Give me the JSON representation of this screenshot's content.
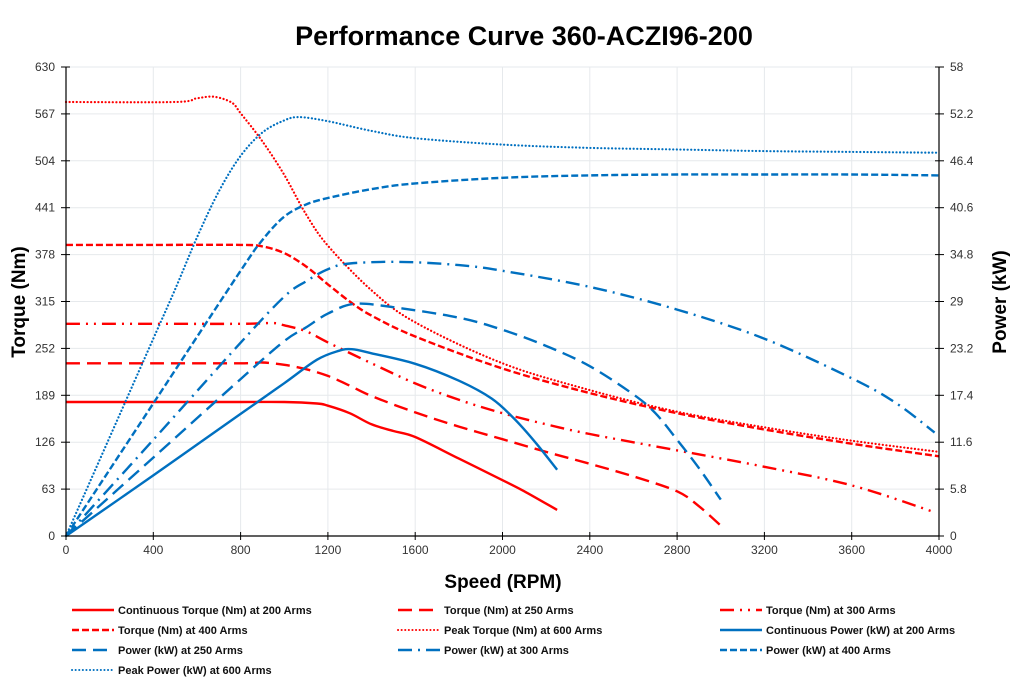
{
  "chart_data": {
    "type": "line",
    "title": "Performance Curve 360-ACZI96-200",
    "xlabel": "Speed (RPM)",
    "ylabel": "Torque (Nm)",
    "y2label": "Power (kW)",
    "xlim": [
      0,
      4000
    ],
    "ylim": [
      0,
      630
    ],
    "y2lim": [
      0,
      58
    ],
    "xticks": [
      "0",
      "400",
      "800",
      "1200",
      "1600",
      "2000",
      "2400",
      "2800",
      "3200",
      "3600",
      "4000"
    ],
    "yticks": [
      "0",
      "63",
      "126",
      "189",
      "252",
      "315",
      "378",
      "441",
      "504",
      "567",
      "630"
    ],
    "y2ticks": [
      "0",
      "5.8",
      "11.6",
      "17.4",
      "23.2",
      "29",
      "34.8",
      "40.6",
      "46.4",
      "52.2",
      "58"
    ],
    "grid": true,
    "legend_position": "bottom",
    "colors": {
      "torque": "#ff0000",
      "power": "#0070c0",
      "grid": "#e6e9ec",
      "axis": "#000000"
    },
    "series": [
      {
        "name": "Continuous Torque (Nm) at 200 Arms",
        "axis": "left",
        "color": "#ff0000",
        "style": "solid",
        "x": [
          0,
          400,
          800,
          1000,
          1150,
          1200,
          1300,
          1400,
          1500,
          1600,
          1800,
          2000,
          2100,
          2250
        ],
        "y": [
          180,
          180,
          180,
          180,
          178,
          175,
          165,
          150,
          141,
          133,
          104,
          75,
          60,
          35
        ]
      },
      {
        "name": "Torque (Nm) at 250 Arms",
        "axis": "left",
        "color": "#ff0000",
        "style": "longdash",
        "x": [
          0,
          400,
          800,
          900,
          1000,
          1100,
          1200,
          1300,
          1400,
          1600,
          1800,
          2000,
          2200,
          2400,
          2600,
          2800,
          2900,
          3000
        ],
        "y": [
          232,
          232,
          232,
          233,
          230,
          224,
          215,
          202,
          188,
          166,
          147,
          130,
          113,
          97,
          80,
          60,
          40,
          14
        ]
      },
      {
        "name": "Torque (Nm) at 300 Arms",
        "axis": "left",
        "color": "#ff0000",
        "style": "dashdotdot",
        "x": [
          0,
          400,
          800,
          950,
          1000,
          1100,
          1200,
          1400,
          1600,
          1800,
          2000,
          2200,
          2400,
          2800,
          3200,
          3600,
          3980
        ],
        "y": [
          285,
          285,
          285,
          286,
          283,
          275,
          260,
          232,
          205,
          183,
          165,
          150,
          137,
          115,
          93,
          68,
          32
        ]
      },
      {
        "name": "Torque (Nm) at 400 Arms",
        "axis": "left",
        "color": "#ff0000",
        "style": "dash",
        "x": [
          0,
          400,
          800,
          900,
          1000,
          1100,
          1200,
          1300,
          1400,
          1600,
          2000,
          2400,
          2800,
          3200,
          3600,
          4000
        ],
        "y": [
          391,
          391,
          391,
          389,
          380,
          362,
          338,
          315,
          296,
          268,
          225,
          192,
          165,
          143,
          124,
          107
        ]
      },
      {
        "name": "Peak Torque (Nm) at 600 Arms",
        "axis": "left",
        "color": "#ff0000",
        "style": "dot",
        "x": [
          0,
          500,
          600,
          680,
          760,
          800,
          900,
          1000,
          1100,
          1200,
          1400,
          1600,
          2000,
          2400,
          2800,
          3200,
          3600,
          4000
        ],
        "y": [
          583,
          583,
          588,
          590,
          582,
          568,
          530,
          485,
          432,
          390,
          330,
          287,
          232,
          196,
          167,
          146,
          128,
          113
        ]
      },
      {
        "name": "Continuous Power (kW) at 200 Arms",
        "axis": "right",
        "color": "#0070c0",
        "style": "solid",
        "x": [
          0,
          400,
          800,
          1000,
          1150,
          1250,
          1310,
          1400,
          1600,
          1800,
          1950,
          2050,
          2150,
          2250
        ],
        "y": [
          0,
          7.5,
          15.1,
          18.9,
          21.8,
          22.9,
          23.1,
          22.6,
          21.3,
          19.2,
          17.0,
          14.6,
          11.6,
          8.2
        ]
      },
      {
        "name": "Power (kW) at 250 Arms",
        "axis": "right",
        "color": "#0070c0",
        "style": "longdash",
        "x": [
          0,
          400,
          800,
          1000,
          1100,
          1200,
          1320,
          1500,
          1800,
          2000,
          2200,
          2400,
          2600,
          2700,
          2800,
          2900,
          3000
        ],
        "y": [
          0,
          9.7,
          19.4,
          24.1,
          25.8,
          27.5,
          28.7,
          28.3,
          27.0,
          25.5,
          23.5,
          21.0,
          17.5,
          15.2,
          11.9,
          8.4,
          4.5
        ]
      },
      {
        "name": "Power (kW) at 300 Arms",
        "axis": "right",
        "color": "#0070c0",
        "style": "dashdot",
        "x": [
          0,
          400,
          800,
          1000,
          1100,
          1200,
          1300,
          1530,
          1800,
          2000,
          2400,
          2800,
          3200,
          3600,
          3800,
          3980
        ],
        "y": [
          0,
          11.9,
          23.9,
          29.6,
          31.5,
          33.0,
          33.7,
          33.9,
          33.5,
          32.8,
          30.8,
          28.0,
          24.4,
          19.5,
          16.5,
          12.8
        ]
      },
      {
        "name": "Power (kW) at 400 Arms",
        "axis": "right",
        "color": "#0070c0",
        "style": "dash",
        "x": [
          0,
          400,
          800,
          900,
          1000,
          1100,
          1200,
          1400,
          1600,
          2000,
          2400,
          2800,
          3200,
          3600,
          4000
        ],
        "y": [
          0,
          16.4,
          32.8,
          36.6,
          39.5,
          41.0,
          41.8,
          42.9,
          43.6,
          44.3,
          44.6,
          44.7,
          44.7,
          44.7,
          44.6
        ]
      },
      {
        "name": "Peak Power (kW) at 600 Arms",
        "axis": "right",
        "color": "#0070c0",
        "style": "dot",
        "x": [
          0,
          400,
          500,
          600,
          700,
          800,
          900,
          1000,
          1070,
          1200,
          1400,
          1600,
          2000,
          2400,
          2800,
          3200,
          3600,
          4000
        ],
        "y": [
          0,
          24.4,
          30.5,
          36.9,
          42.6,
          47.0,
          49.9,
          51.4,
          51.8,
          51.3,
          50.1,
          49.2,
          48.4,
          48.0,
          47.8,
          47.6,
          47.5,
          47.4
        ]
      }
    ]
  }
}
